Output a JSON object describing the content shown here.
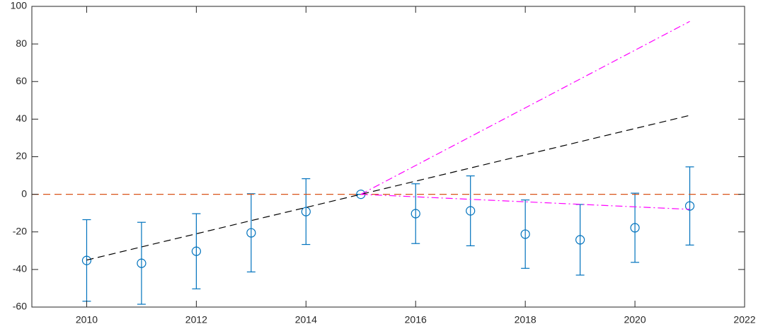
{
  "chart_data": {
    "type": "errorbar",
    "xlim": [
      2009,
      2022
    ],
    "xticks": [
      2010,
      2012,
      2014,
      2016,
      2018,
      2020,
      2022
    ],
    "ylim": [
      -60,
      100
    ],
    "yticks": [
      -60,
      -40,
      -20,
      0,
      20,
      40,
      60,
      80,
      100
    ],
    "grid": false,
    "series": [
      {
        "type": "errorbar",
        "color": "#0072bd",
        "x": [
          2010,
          2011,
          2012,
          2013,
          2014,
          2015,
          2016,
          2017,
          2018,
          2019,
          2020,
          2021
        ],
        "values": [
          -35.2,
          -36.7,
          -30.3,
          -20.5,
          -9.2,
          0,
          -10.3,
          -8.8,
          -21.2,
          -24.2,
          -17.8,
          -6.2
        ],
        "errors": [
          21.7,
          21.8,
          20,
          20.8,
          17.5,
          0,
          15.9,
          18.6,
          18.2,
          18.8,
          18.4,
          20.8
        ]
      },
      {
        "type": "line",
        "color": "#d95319",
        "dash": "dashed",
        "x": [
          2009,
          2022
        ],
        "values": [
          0,
          0
        ]
      },
      {
        "type": "line",
        "color": "#000000",
        "dash": "dashed",
        "x": [
          2010,
          2021
        ],
        "values": [
          -35,
          42
        ]
      },
      {
        "type": "line",
        "color": "#ff00ff",
        "dash": "dashdot",
        "x": [
          2015,
          2021
        ],
        "values": [
          0,
          92
        ]
      },
      {
        "type": "line",
        "color": "#ff00ff",
        "dash": "dashdot",
        "x": [
          2015,
          2021
        ],
        "values": [
          0,
          -8
        ]
      }
    ]
  }
}
